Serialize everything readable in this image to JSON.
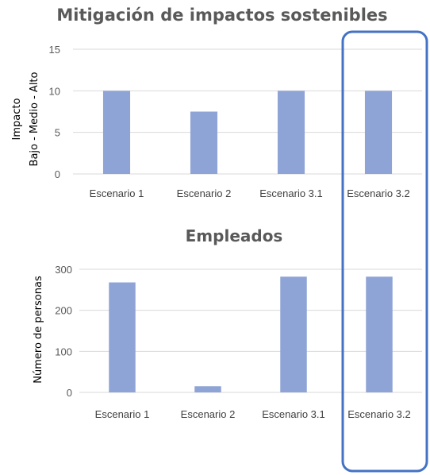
{
  "colors": {
    "bar": "#8fa4d6",
    "highlight": "#4472c4",
    "grid": "#d9d9d9",
    "text": "#595959"
  },
  "highlight": {
    "category": "Escenario 3.2",
    "shape": "rounded-rectangle"
  },
  "chart_data": [
    {
      "type": "bar",
      "title": "Mitigación de impactos sostenibles",
      "ylabel": [
        "Impacto",
        "Bajo - Medio - Alto"
      ],
      "xlabel": "",
      "categories": [
        "Escenario 1",
        "Escenario 2",
        "Escenario 3.1",
        "Escenario 3.2"
      ],
      "values": [
        10,
        7.5,
        10,
        10
      ],
      "ylim": [
        0,
        15
      ],
      "yticks": [
        0,
        5,
        10,
        15
      ],
      "grid": true,
      "legend": "none"
    },
    {
      "type": "bar",
      "title": "Empleados",
      "ylabel": [
        "Número de personas"
      ],
      "xlabel": "",
      "categories": [
        "Escenario 1",
        "Escenario 2",
        "Escenario 3.1",
        "Escenario 3.2"
      ],
      "values": [
        268,
        15,
        282,
        282
      ],
      "ylim": [
        0,
        300
      ],
      "yticks": [
        0,
        100,
        200,
        300
      ],
      "grid": true,
      "legend": "none"
    }
  ]
}
